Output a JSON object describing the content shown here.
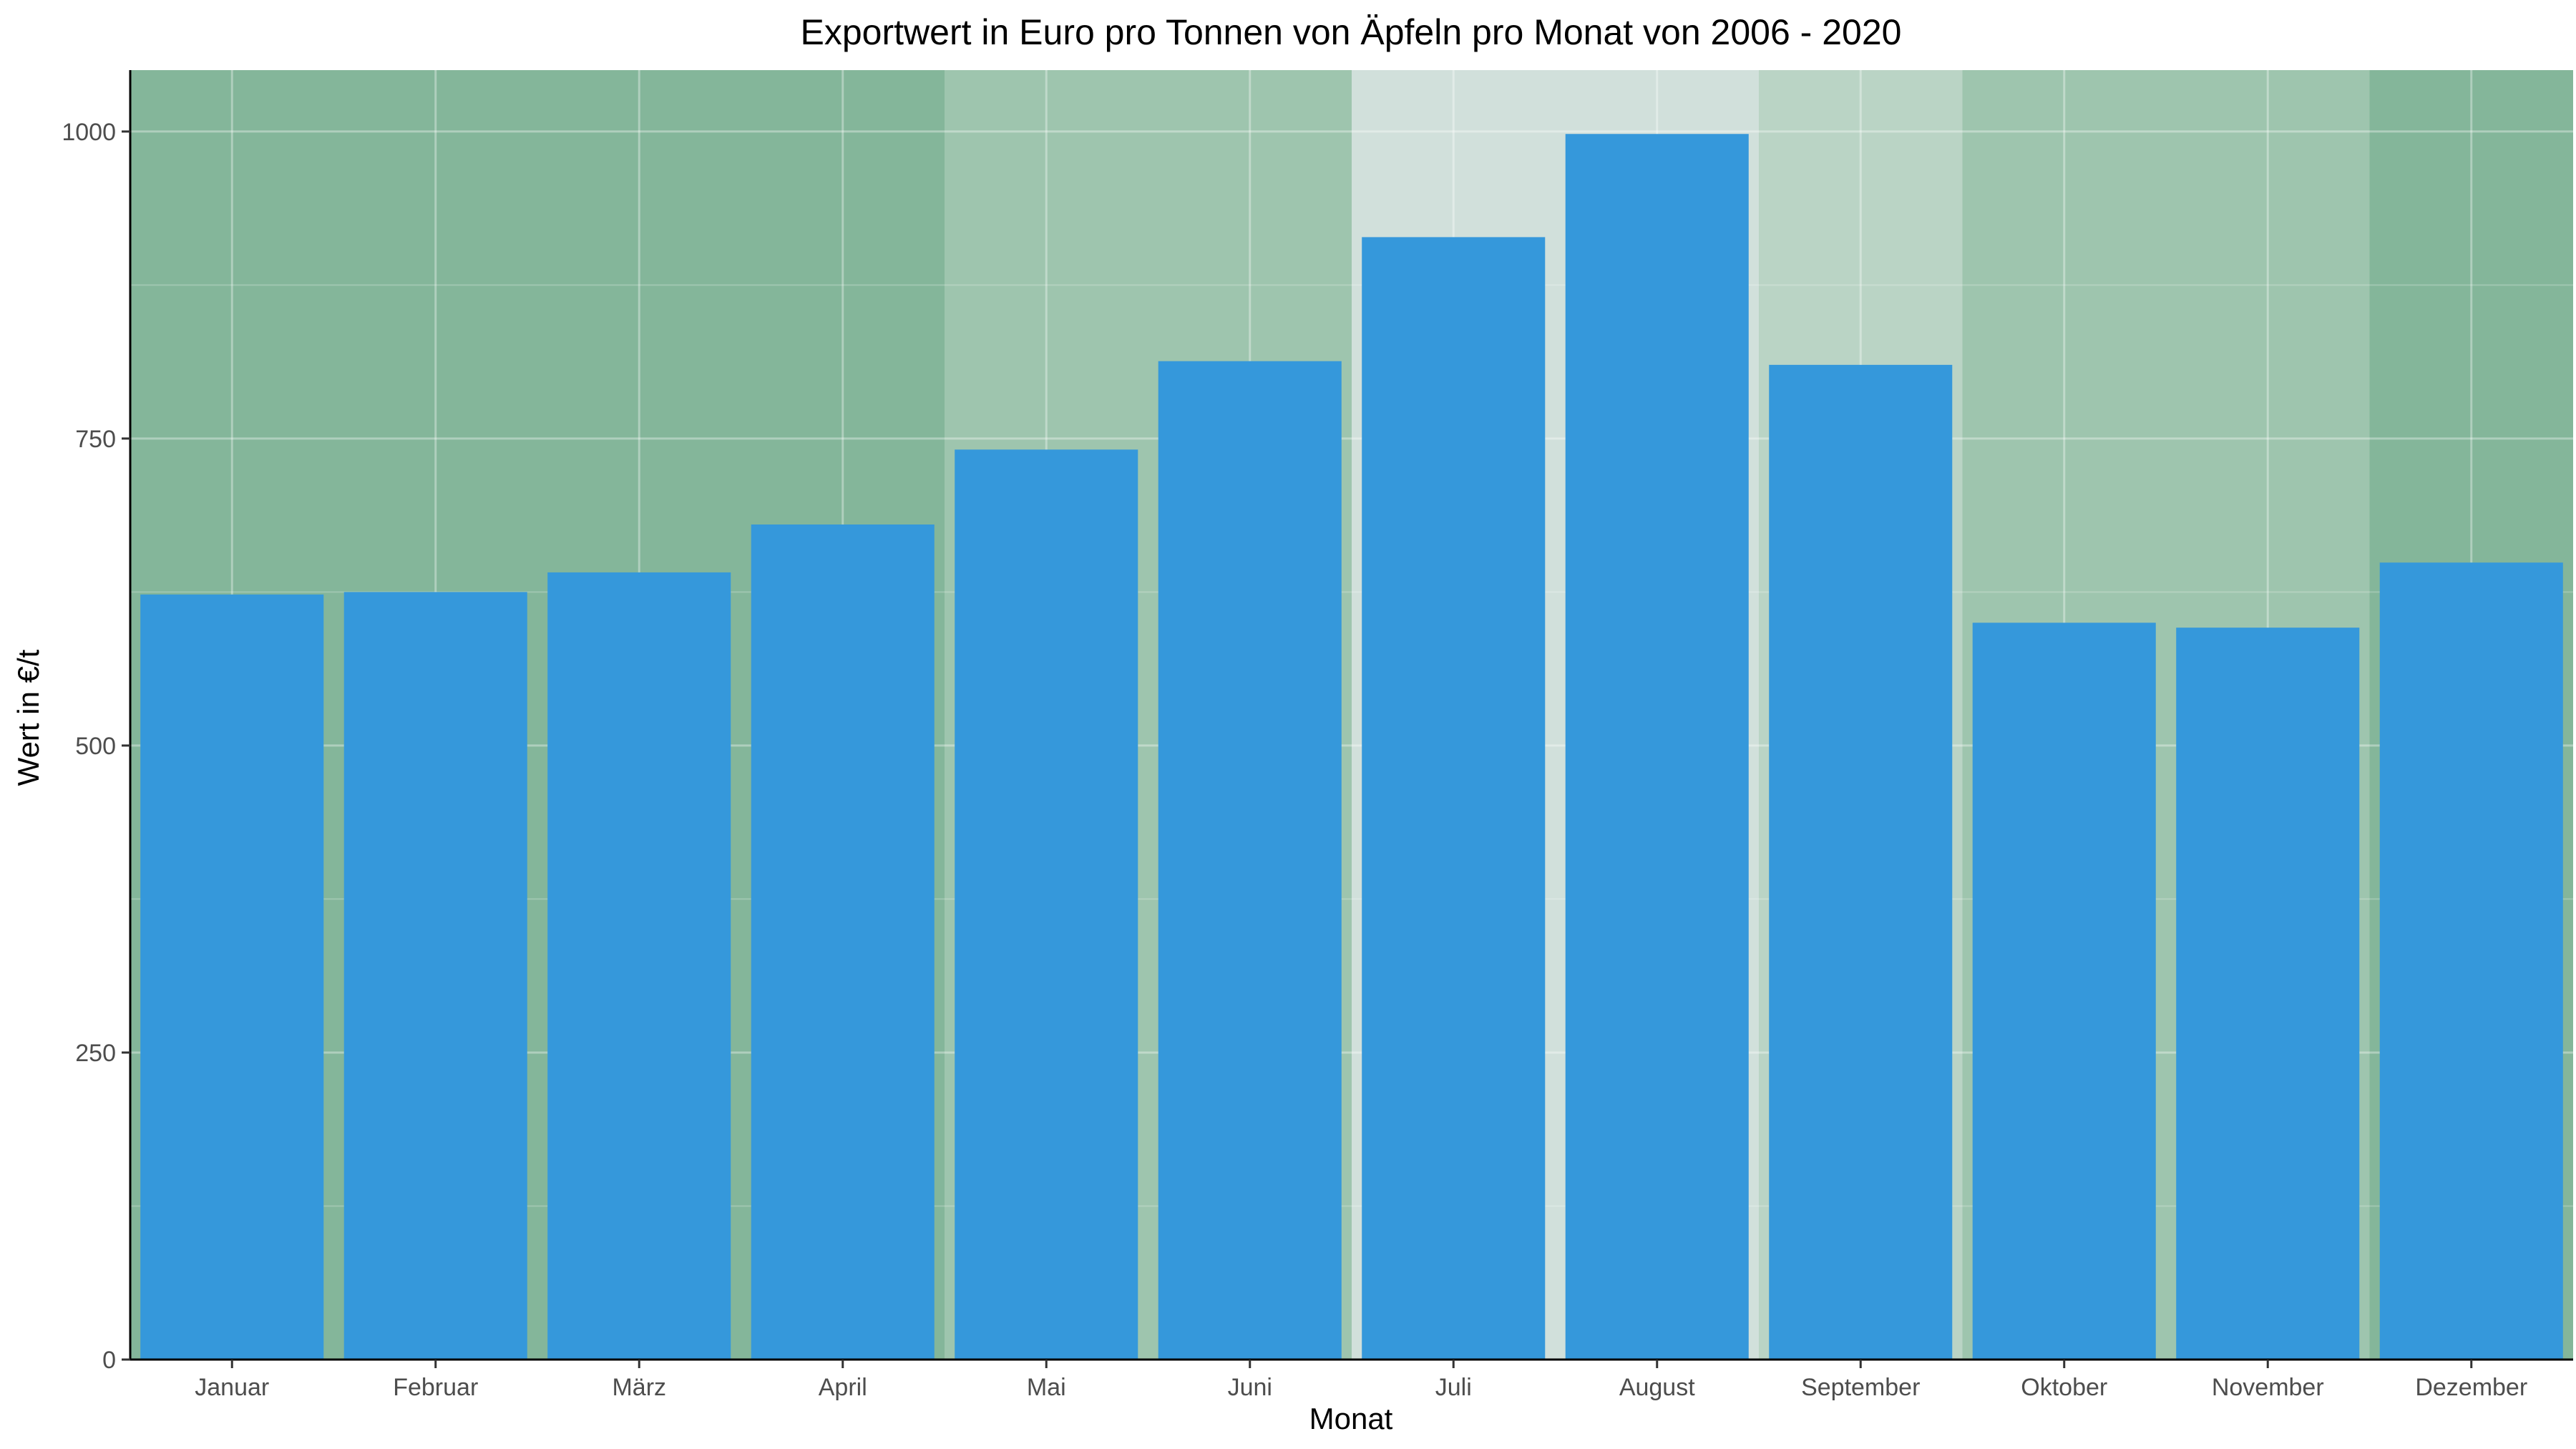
{
  "chart_data": {
    "type": "bar",
    "title": "Exportwert in Euro pro Tonnen von Äpfeln pro Monat von 2006 - 2020",
    "xlabel": "Monat",
    "ylabel": "Wert in €/t",
    "categories": [
      "Januar",
      "Februar",
      "März",
      "April",
      "Mai",
      "Juni",
      "Juli",
      "August",
      "September",
      "Oktober",
      "November",
      "Dezember"
    ],
    "values": [
      623,
      625,
      641,
      680,
      741,
      813,
      914,
      998,
      810,
      600,
      596,
      649
    ],
    "ylim": [
      0,
      1050
    ],
    "yticks": [
      0,
      250,
      500,
      750,
      1000
    ],
    "ytick_labels": [
      "0",
      "250",
      "500",
      "750",
      "1000"
    ],
    "grid": true,
    "bar_color": "#3598db",
    "background_bands": [
      {
        "from": "Januar",
        "to": "April",
        "color": "#84b69a"
      },
      {
        "from": "Mai",
        "to": "Juni",
        "color": "#9ec5ae"
      },
      {
        "from": "Juli",
        "to": "August",
        "color": "#d1e0db"
      },
      {
        "from": "September",
        "to": "September",
        "color": "#bad4c5"
      },
      {
        "from": "Oktober",
        "to": "November",
        "color": "#9ec5ae"
      },
      {
        "from": "Dezember",
        "to": "Dezember",
        "color": "#84b69a"
      }
    ]
  }
}
